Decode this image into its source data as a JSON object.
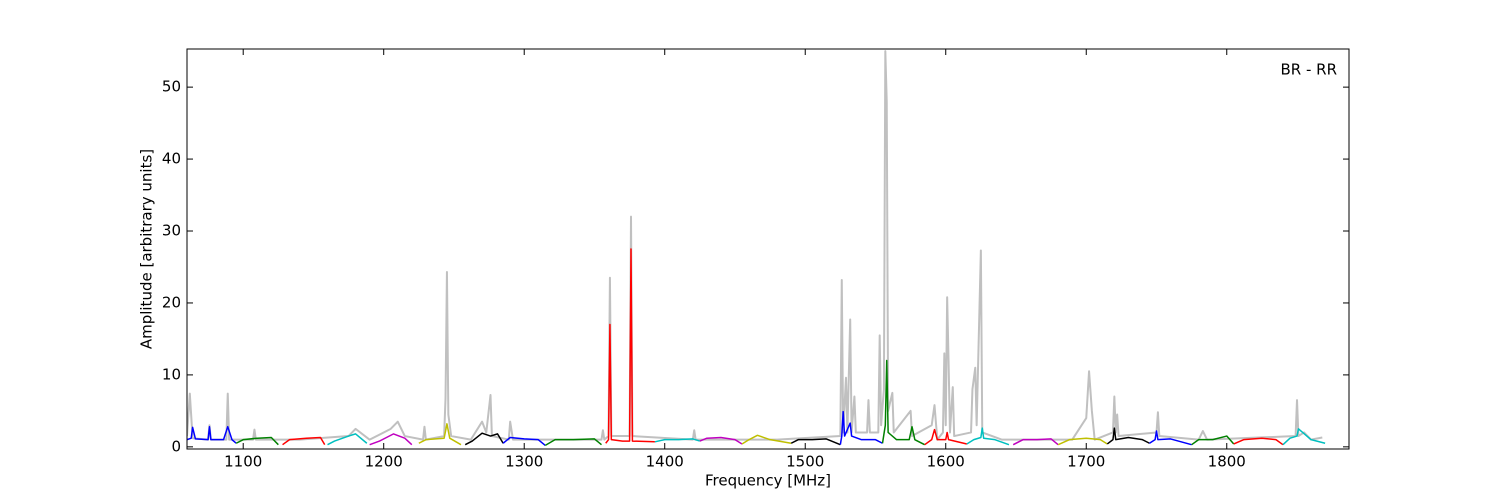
{
  "chart_data": {
    "type": "line",
    "annotation": "BR - RR",
    "x_label": "Frequency [MHz]",
    "y_label": "Amplitude [arbitrary units]",
    "xlim": [
      1060,
      1887
    ],
    "ylim": [
      -0.3,
      55.3
    ],
    "xticks": [
      1100,
      1200,
      1300,
      1400,
      1500,
      1600,
      1700,
      1800
    ],
    "yticks": [
      0,
      10,
      20,
      30,
      40,
      50
    ],
    "grid": false,
    "series": [
      {
        "color": "#c0c0c0",
        "x": [
          1060,
          1062,
          1064,
          1075,
          1076,
          1077,
          1088,
          1089,
          1090,
          1107,
          1108,
          1109,
          1140,
          1175,
          1180,
          1190,
          1205,
          1210,
          1215,
          1228,
          1229,
          1230,
          1243,
          1244,
          1245,
          1246,
          1248,
          1262,
          1270,
          1273,
          1276,
          1277,
          1289,
          1290,
          1292,
          1355,
          1356,
          1357,
          1360,
          1361,
          1362,
          1375,
          1376,
          1377,
          1420,
          1421,
          1422,
          1480,
          1525,
          1526,
          1527,
          1529,
          1530,
          1532,
          1533,
          1535,
          1536,
          1544,
          1545,
          1546,
          1552,
          1553,
          1554,
          1556,
          1557,
          1558,
          1559,
          1562,
          1563,
          1575,
          1576,
          1590,
          1592,
          1594,
          1598,
          1599,
          1600,
          1601,
          1602,
          1603,
          1605,
          1606,
          1618,
          1619,
          1621,
          1622,
          1625,
          1626,
          1640,
          1690,
          1700,
          1702,
          1704,
          1706,
          1719,
          1720,
          1721,
          1722,
          1723,
          1750,
          1751,
          1752,
          1780,
          1783,
          1786,
          1849,
          1850,
          1851,
          1855,
          1860,
          1868
        ],
        "values": [
          1.5,
          7.4,
          1.2,
          1,
          3,
          1,
          1,
          7.4,
          1,
          1,
          2.4,
          1,
          1,
          1.5,
          2.5,
          1,
          2.5,
          3.5,
          1.5,
          1,
          2.8,
          1,
          1.5,
          6.8,
          24.3,
          4.5,
          1.5,
          1,
          3.5,
          2,
          7.2,
          1.5,
          1,
          3.5,
          1,
          1,
          2.3,
          1,
          1.5,
          23.5,
          1.5,
          1.5,
          32,
          1.5,
          1,
          2.3,
          1,
          1,
          1.5,
          23.2,
          2,
          9.6,
          2,
          17.7,
          2,
          7,
          2,
          2,
          6.5,
          2,
          2,
          15.5,
          3,
          8,
          55,
          48,
          5,
          7.5,
          2,
          5,
          1.5,
          3,
          5.8,
          1,
          2,
          13,
          3,
          20.8,
          12,
          2,
          8.3,
          1.5,
          2,
          8,
          11,
          3,
          27.3,
          2,
          1,
          1,
          4,
          10.5,
          5,
          1,
          2,
          7,
          2,
          4.5,
          1.5,
          2,
          4.8,
          1.5,
          1,
          2.2,
          1,
          1.5,
          6.5,
          1.5,
          2,
          1,
          1.3
        ]
      },
      {
        "color": "#0000ff",
        "x": [
          1060,
          1063,
          1064,
          1066,
          1075,
          1076,
          1077,
          1086,
          1089,
          1092,
          1095
        ],
        "values": [
          1,
          1.2,
          2.7,
          1.1,
          1,
          2.8,
          1,
          1,
          2.8,
          1,
          0.5
        ]
      },
      {
        "color": "#008000",
        "x": [
          1095,
          1100,
          1110,
          1120,
          1125
        ],
        "values": [
          0.5,
          1,
          1.2,
          1.3,
          0.3
        ]
      },
      {
        "color": "#ff0000",
        "x": [
          1128,
          1133,
          1145,
          1155,
          1158
        ],
        "values": [
          0.3,
          1,
          1.2,
          1.3,
          0.3
        ]
      },
      {
        "color": "#00bfbf",
        "x": [
          1160,
          1165,
          1175,
          1180,
          1188
        ],
        "values": [
          0.3,
          0.8,
          1.5,
          1.8,
          0.5
        ]
      },
      {
        "color": "#bf00bf",
        "x": [
          1190,
          1197,
          1207,
          1215,
          1220
        ],
        "values": [
          0.3,
          0.8,
          1.8,
          1.2,
          0.3
        ]
      },
      {
        "color": "#bfbf00",
        "x": [
          1225,
          1230,
          1243,
          1245,
          1247,
          1255
        ],
        "values": [
          0.5,
          1,
          1.2,
          3.2,
          1.2,
          0.3
        ]
      },
      {
        "color": "#000000",
        "x": [
          1258,
          1263,
          1270,
          1276,
          1281,
          1285
        ],
        "values": [
          0.3,
          0.8,
          1.9,
          1.5,
          1.8,
          0.5
        ]
      },
      {
        "color": "#0000ff",
        "x": [
          1285,
          1290,
          1300,
          1310,
          1315
        ],
        "values": [
          0.5,
          1.3,
          1.1,
          1,
          0.2
        ]
      },
      {
        "color": "#008000",
        "x": [
          1315,
          1322,
          1335,
          1350,
          1355
        ],
        "values": [
          0.2,
          1,
          1,
          1.1,
          0.3
        ]
      },
      {
        "color": "#ff0000",
        "x": [
          1358,
          1360,
          1361,
          1362,
          1370,
          1375,
          1376,
          1377,
          1393
        ],
        "values": [
          0.5,
          1,
          17,
          1,
          0.8,
          0.8,
          27.5,
          0.8,
          0.7
        ]
      },
      {
        "color": "#00bfbf",
        "x": [
          1393,
          1400,
          1410,
          1420,
          1425
        ],
        "values": [
          0.7,
          1,
          1,
          1.1,
          0.8
        ]
      },
      {
        "color": "#bf00bf",
        "x": [
          1425,
          1430,
          1440,
          1450,
          1455
        ],
        "values": [
          0.8,
          1.2,
          1.3,
          1,
          0.4
        ]
      },
      {
        "color": "#bfbf00",
        "x": [
          1455,
          1460,
          1466,
          1475,
          1490
        ],
        "values": [
          0.4,
          1,
          1.6,
          1,
          0.5
        ]
      },
      {
        "color": "#000000",
        "x": [
          1490,
          1495,
          1505,
          1515,
          1525
        ],
        "values": [
          0.5,
          1,
          1,
          1.1,
          0.3
        ]
      },
      {
        "color": "#0000ff",
        "x": [
          1525,
          1526,
          1527,
          1528,
          1532,
          1533,
          1540,
          1550,
          1555
        ],
        "values": [
          0.3,
          1.5,
          4.9,
          1.5,
          3.3,
          1.5,
          1,
          1,
          0.5
        ]
      },
      {
        "color": "#008000",
        "x": [
          1555,
          1557,
          1558,
          1559,
          1565,
          1574,
          1576,
          1578,
          1585
        ],
        "values": [
          0.5,
          3,
          12,
          2,
          1,
          1,
          2.8,
          1,
          0.3
        ]
      },
      {
        "color": "#ff0000",
        "x": [
          1585,
          1590,
          1592,
          1594,
          1600,
          1601,
          1602,
          1615
        ],
        "values": [
          0.3,
          1,
          2.4,
          1,
          1,
          2,
          1,
          0.4
        ]
      },
      {
        "color": "#00bfbf",
        "x": [
          1615,
          1620,
          1625,
          1626,
          1627,
          1635,
          1645
        ],
        "values": [
          0.4,
          1,
          1.3,
          2.6,
          1.2,
          1,
          0.3
        ]
      },
      {
        "color": "#bf00bf",
        "x": [
          1648,
          1655,
          1665,
          1675,
          1680
        ],
        "values": [
          0.3,
          1,
          1,
          1.1,
          0.3
        ]
      },
      {
        "color": "#bfbf00",
        "x": [
          1680,
          1688,
          1700,
          1710,
          1715
        ],
        "values": [
          0.3,
          1,
          1.2,
          1,
          0.4
        ]
      },
      {
        "color": "#000000",
        "x": [
          1715,
          1719,
          1720,
          1721,
          1730,
          1740,
          1745
        ],
        "values": [
          0.4,
          1,
          2.6,
          1,
          1.3,
          1,
          0.5
        ]
      },
      {
        "color": "#0000ff",
        "x": [
          1745,
          1749,
          1750,
          1751,
          1760,
          1775
        ],
        "values": [
          0.5,
          1,
          2.2,
          1,
          1.1,
          0.3
        ]
      },
      {
        "color": "#008000",
        "x": [
          1775,
          1780,
          1790,
          1800,
          1805
        ],
        "values": [
          0.3,
          1,
          1,
          1.5,
          0.4
        ]
      },
      {
        "color": "#ff0000",
        "x": [
          1805,
          1812,
          1825,
          1835,
          1840
        ],
        "values": [
          0.4,
          1,
          1.2,
          1,
          0.3
        ]
      },
      {
        "color": "#00bfbf",
        "x": [
          1840,
          1845,
          1850,
          1851,
          1860,
          1870
        ],
        "values": [
          0.3,
          1.2,
          1.5,
          2.5,
          1,
          0.5
        ]
      }
    ]
  }
}
